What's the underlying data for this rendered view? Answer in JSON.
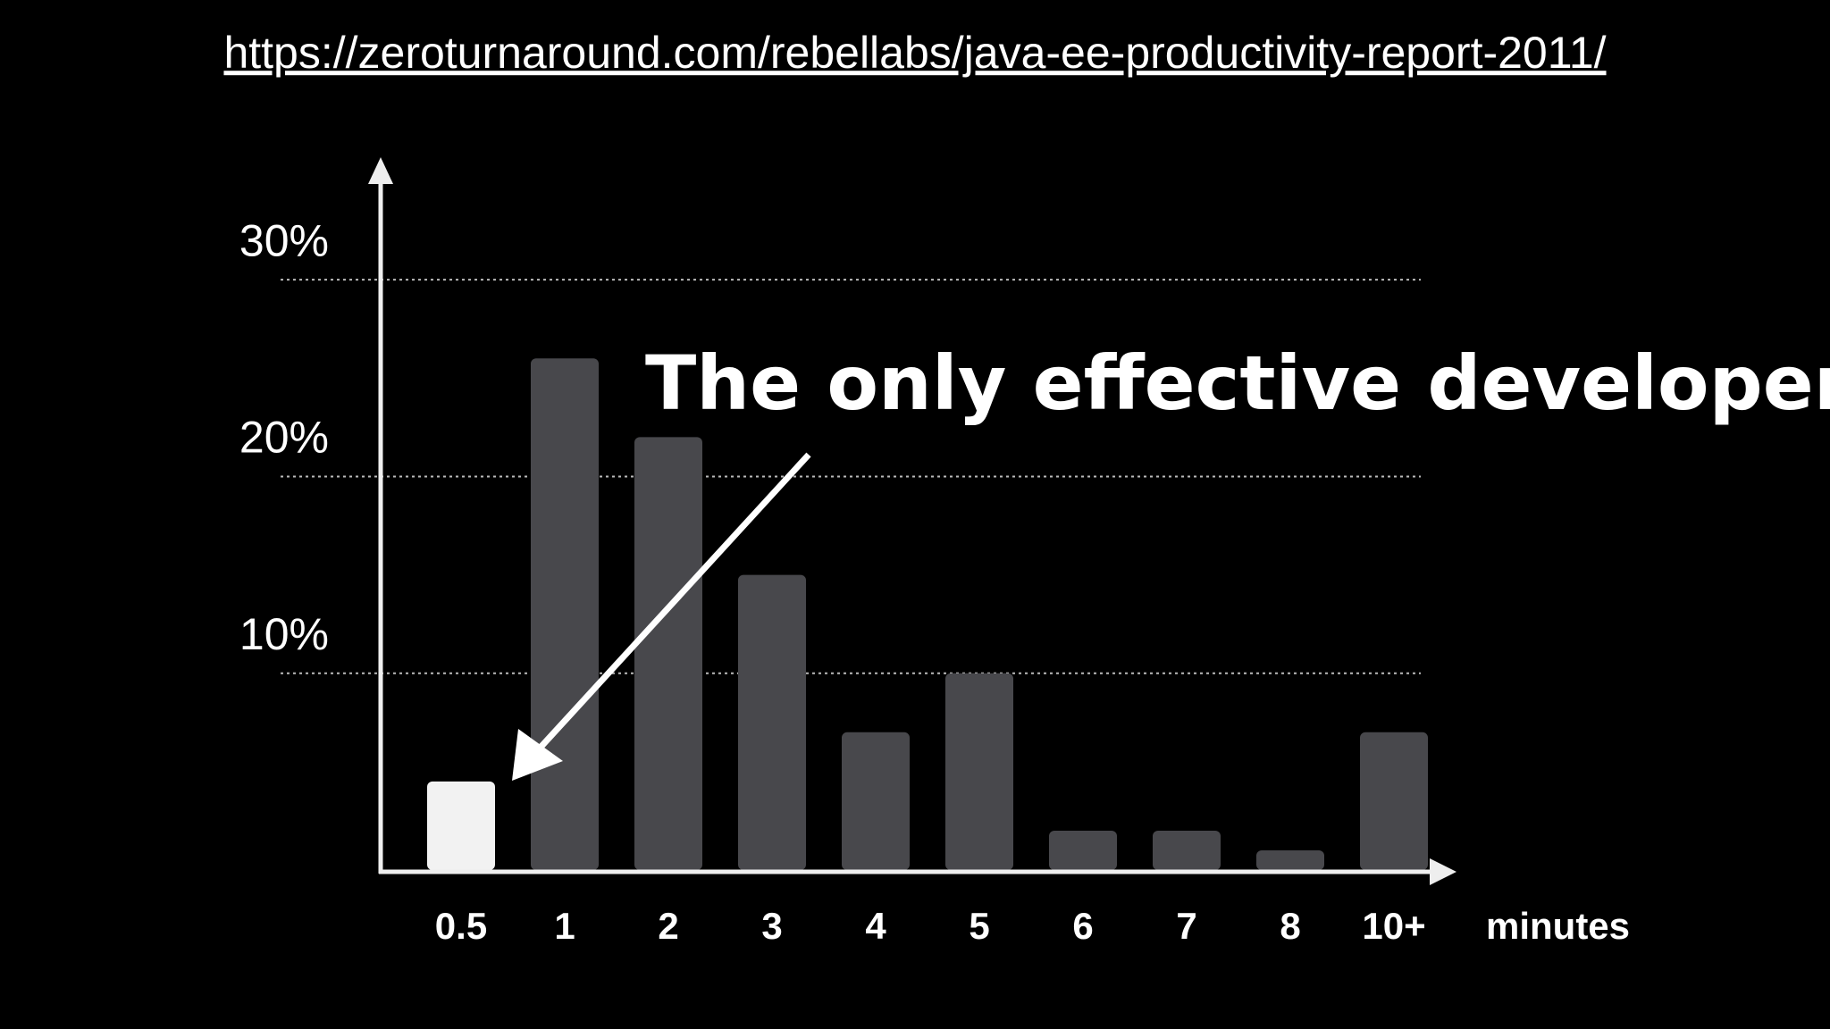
{
  "source_url": "https://zeroturnaround.com/rebellabs/java-ee-productivity-report-2011/",
  "chart_data": {
    "type": "bar",
    "annotation": "The only effective developers??",
    "x_label": "minutes",
    "categories": [
      "0.5",
      "1",
      "2",
      "3",
      "4",
      "5",
      "6",
      "7",
      "8",
      "10+"
    ],
    "values": [
      4.5,
      26,
      22,
      15,
      7,
      10,
      2,
      2,
      1,
      7
    ],
    "colors": [
      "#f2f2f2",
      "#48484c",
      "#48484c",
      "#48484c",
      "#48484c",
      "#48484c",
      "#48484c",
      "#48484c",
      "#48484c",
      "#48484c"
    ],
    "ylim": [
      0,
      36
    ],
    "yticks": [
      {
        "value": 10,
        "label": "10%"
      },
      {
        "value": 20,
        "label": "20%"
      },
      {
        "value": 30,
        "label": "30%"
      }
    ],
    "grid": true
  }
}
